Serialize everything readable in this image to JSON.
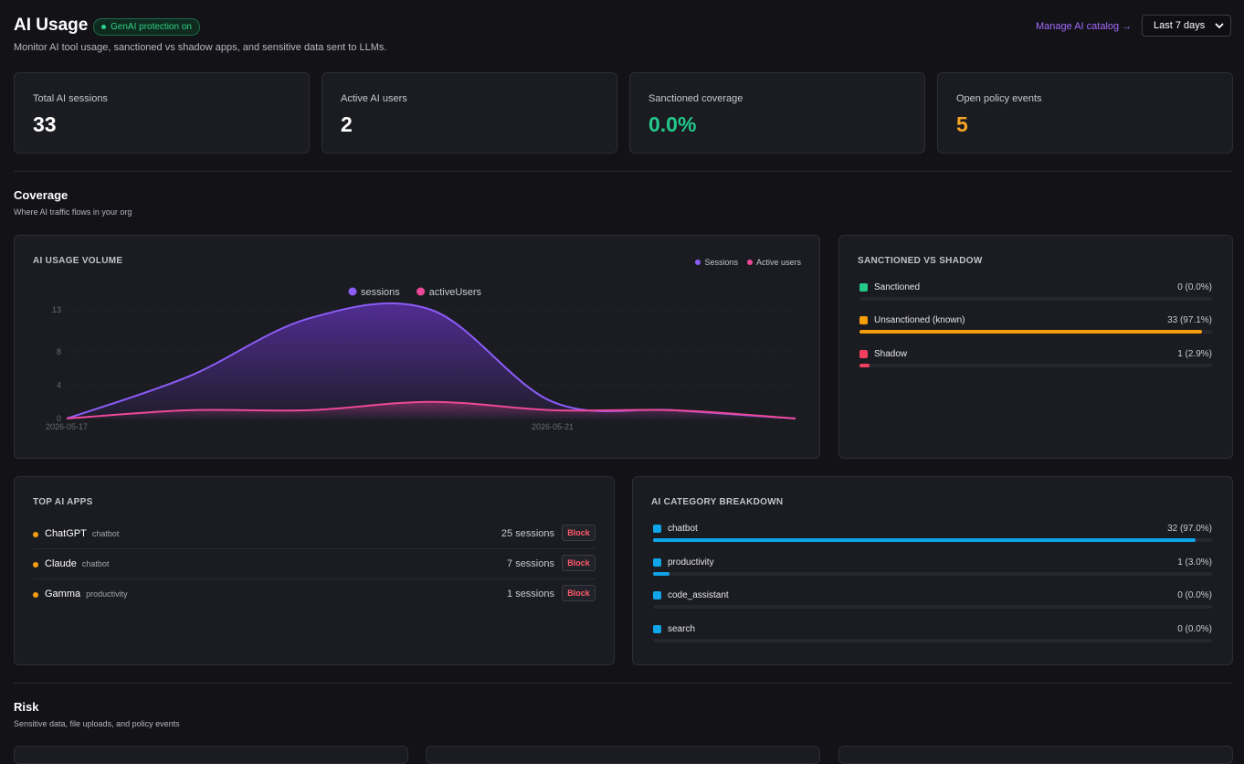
{
  "header": {
    "title": "AI Usage",
    "badge": "GenAI protection on",
    "subtitle": "Monitor AI tool usage, sanctioned vs shadow apps, and sensitive data sent to LLMs.",
    "manage_link": "Manage AI catalog →",
    "range_value": "Last 7 days"
  },
  "kpis": [
    {
      "label": "Total AI sessions",
      "value": "33",
      "color": "#ffffff"
    },
    {
      "label": "Active AI users",
      "value": "2",
      "color": "#ffffff"
    },
    {
      "label": "Sanctioned coverage",
      "value": "0.0%",
      "color": "#22c98a"
    },
    {
      "label": "Open policy events",
      "value": "5",
      "color": "#f5a524"
    }
  ],
  "coverage": {
    "title": "Coverage",
    "subtitle": "Where AI traffic flows in your org"
  },
  "usage_card": {
    "title": "AI USAGE VOLUME",
    "legend": [
      "Sessions",
      "Active users"
    ]
  },
  "chart_data": {
    "type": "area",
    "x": [
      "2026-05-17",
      "2026-05-18",
      "2026-05-19",
      "2026-05-20",
      "2026-05-21",
      "2026-05-22",
      "2026-05-23"
    ],
    "x_tick_labels": [
      "2026-05-17",
      "2026-05-21"
    ],
    "y_ticks": [
      0,
      4,
      8,
      13
    ],
    "ylim": [
      0,
      13
    ],
    "series": [
      {
        "name": "sessions",
        "values": [
          0,
          5,
          12,
          13,
          2,
          1,
          0
        ],
        "color": "#8b5cf6"
      },
      {
        "name": "activeUsers",
        "values": [
          0,
          1,
          1,
          2,
          1,
          1,
          0
        ],
        "color": "#ec4899"
      }
    ],
    "legend_position": "top-center"
  },
  "sanction": {
    "title": "SANCTIONED VS SHADOW",
    "rows": [
      {
        "label": "Sanctioned",
        "value": "0 (0.0%)",
        "pct": 0,
        "color": "#22c98a"
      },
      {
        "label": "Unsanctioned (known)",
        "value": "33 (97.1%)",
        "pct": 97.1,
        "color": "#f59e0b"
      },
      {
        "label": "Shadow",
        "value": "1 (2.9%)",
        "pct": 2.9,
        "color": "#f43f5e"
      }
    ]
  },
  "top_apps": {
    "title": "TOP AI APPS",
    "block_label": "Block",
    "rows": [
      {
        "name": "ChatGPT",
        "category": "chatbot",
        "sessions": "25 sessions"
      },
      {
        "name": "Claude",
        "category": "chatbot",
        "sessions": "7 sessions"
      },
      {
        "name": "Gamma",
        "category": "productivity",
        "sessions": "1 sessions"
      }
    ]
  },
  "categories": {
    "title": "AI CATEGORY BREAKDOWN",
    "rows": [
      {
        "label": "chatbot",
        "value": "32 (97.0%)",
        "pct": 97.0,
        "color": "#0ea5e9"
      },
      {
        "label": "productivity",
        "value": "1 (3.0%)",
        "pct": 3.0,
        "color": "#0ea5e9"
      },
      {
        "label": "code_assistant",
        "value": "0 (0.0%)",
        "pct": 0,
        "color": "#0ea5e9"
      },
      {
        "label": "search",
        "value": "0 (0.0%)",
        "pct": 0,
        "color": "#0ea5e9"
      }
    ]
  },
  "risk": {
    "title": "Risk",
    "subtitle": "Sensitive data, file uploads, and policy events"
  }
}
